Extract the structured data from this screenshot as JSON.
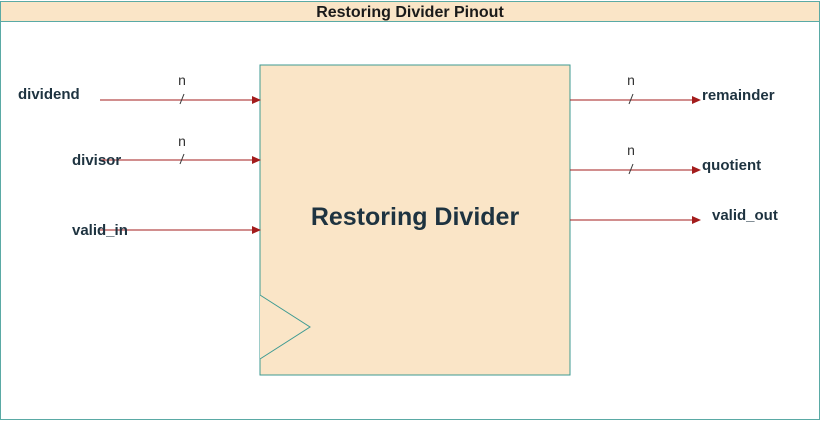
{
  "title": "Restoring Divider Pinout",
  "block": {
    "label": "Restoring Divider"
  },
  "inputs": [
    {
      "name": "dividend",
      "width": "n"
    },
    {
      "name": "divisor",
      "width": "n"
    },
    {
      "name": "valid_in",
      "width": ""
    }
  ],
  "outputs": [
    {
      "name": "remainder",
      "width": "n"
    },
    {
      "name": "quotient",
      "width": "n"
    },
    {
      "name": "valid_out",
      "width": ""
    }
  ],
  "colors": {
    "frame": "#5aaaa5",
    "title_fill": "#fae5c7",
    "block_fill": "#fae5c7",
    "block_stroke": "#3d9a92",
    "arrow": "#a31c1c",
    "label": "#1e3340"
  }
}
